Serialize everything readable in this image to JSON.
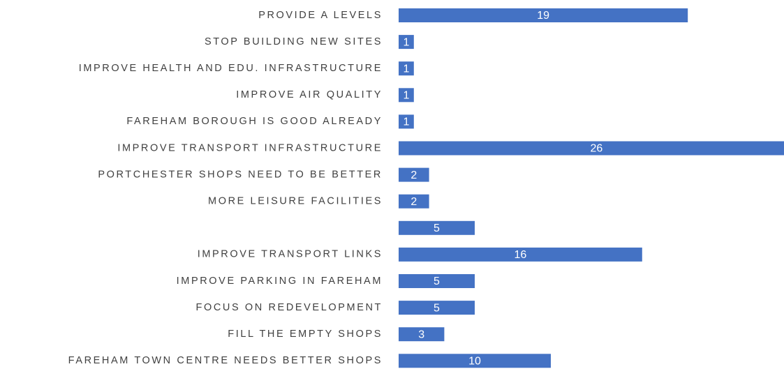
{
  "chart_data": {
    "type": "bar",
    "orientation": "horizontal",
    "color": "#4472c4",
    "categories": [
      "PROVIDE A LEVELS",
      "STOP BUILDING NEW SITES",
      "IMPROVE HEALTH AND EDU. INFRASTRUCTURE",
      "IMPROVE AIR QUALITY",
      "FAREHAM BOROUGH IS GOOD ALREADY",
      "IMPROVE TRANSPORT INFRASTRUCTURE",
      "PORTCHESTER SHOPS NEED TO BE BETTER",
      "MORE LEISURE FACILITIES",
      null,
      "IMPROVE TRANSPORT LINKS",
      "IMPROVE PARKING IN FAREHAM",
      "FOCUS ON REDEVELOPMENT",
      "FILL THE EMPTY SHOPS",
      "FAREHAM TOWN CENTRE NEEDS BETTER SHOPS"
    ],
    "values": [
      19,
      1,
      1,
      1,
      1,
      26,
      2,
      2,
      5,
      16,
      5,
      5,
      3,
      10
    ]
  }
}
